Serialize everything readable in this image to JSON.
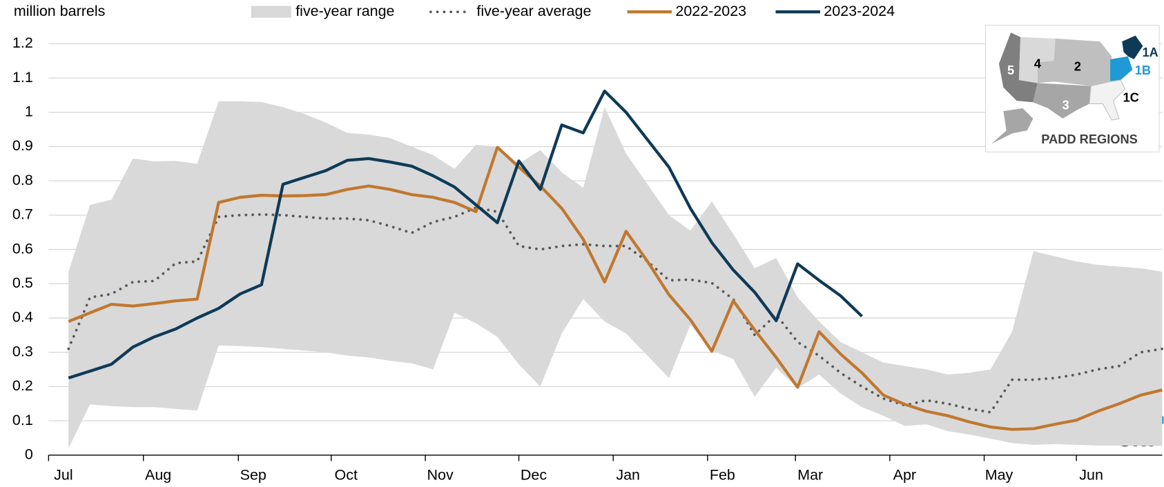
{
  "chart_data": {
    "type": "line",
    "y_label": "million barrels",
    "categories": [
      null,
      null,
      null,
      null,
      null,
      null,
      null,
      null,
      null,
      null,
      null,
      null,
      null,
      null,
      null,
      null,
      null,
      null,
      null,
      null,
      null,
      null,
      null,
      null,
      null,
      null,
      null,
      null,
      null,
      null,
      null,
      null,
      null,
      null,
      null,
      null,
      null,
      null,
      null,
      null,
      null,
      null,
      null,
      null,
      null,
      null,
      null,
      null,
      null,
      null,
      null,
      null
    ],
    "xlim": [
      -0.93,
      51
    ],
    "xticks": [
      {
        "value": -0.93,
        "label": "Jul"
      },
      {
        "value": 3.49,
        "label": "Aug"
      },
      {
        "value": 7.92,
        "label": "Sep"
      },
      {
        "value": 12.25,
        "label": "Oct"
      },
      {
        "value": 16.64,
        "label": "Nov"
      },
      {
        "value": 21.0,
        "label": "Dec"
      },
      {
        "value": 25.4,
        "label": "Jan"
      },
      {
        "value": 29.8,
        "label": "Feb"
      },
      {
        "value": 33.9,
        "label": "Mar"
      },
      {
        "value": 38.3,
        "label": "Apr"
      },
      {
        "value": 42.7,
        "label": "May"
      },
      {
        "value": 47.0,
        "label": "Jun"
      }
    ],
    "ylim": [
      0,
      1.2
    ],
    "yticks": [
      0,
      0.1,
      0.2,
      0.3,
      0.4,
      0.5,
      0.6,
      0.7,
      0.8,
      0.9,
      1,
      1.1,
      1.2
    ],
    "grid": true,
    "series": [
      {
        "name": "five-year range",
        "kind": "band",
        "color": "#d9d9d9",
        "high": [
          0.535,
          0.73,
          0.745,
          0.865,
          0.857,
          0.858,
          0.85,
          1.032,
          1.032,
          1.03,
          1.015,
          0.995,
          0.97,
          0.94,
          0.935,
          0.925,
          0.9,
          0.875,
          0.835,
          0.905,
          0.9,
          0.85,
          0.89,
          0.825,
          0.78,
          1.015,
          0.88,
          0.79,
          0.7,
          0.655,
          0.74,
          0.645,
          0.545,
          0.575,
          0.46,
          0.39,
          0.33,
          0.3,
          0.27,
          0.26,
          0.25,
          0.235,
          0.24,
          0.25,
          0.36,
          0.595,
          0.58,
          0.565,
          0.555,
          0.55,
          0.545,
          0.535
        ],
        "low": [
          0.02,
          0.148,
          0.143,
          0.14,
          0.14,
          0.135,
          0.13,
          0.32,
          0.318,
          0.315,
          0.31,
          0.305,
          0.3,
          0.29,
          0.285,
          0.275,
          0.268,
          0.25,
          0.415,
          0.385,
          0.345,
          0.265,
          0.2,
          0.355,
          0.455,
          0.39,
          0.355,
          0.29,
          0.225,
          0.38,
          0.305,
          0.28,
          0.17,
          0.255,
          0.195,
          0.235,
          0.18,
          0.14,
          0.115,
          0.085,
          0.09,
          0.07,
          0.06,
          0.048,
          0.035,
          0.03,
          0.032,
          0.03,
          0.028,
          0.028,
          0.027,
          0.027
        ]
      },
      {
        "name": "five-year average",
        "kind": "dotted",
        "color": "#595959",
        "values": [
          0.31,
          0.46,
          0.47,
          0.505,
          0.508,
          0.56,
          0.565,
          0.695,
          0.7,
          0.702,
          0.7,
          0.695,
          0.69,
          0.69,
          0.685,
          0.668,
          0.648,
          0.68,
          0.695,
          0.722,
          0.71,
          0.61,
          0.6,
          0.61,
          0.615,
          0.61,
          0.61,
          0.565,
          0.51,
          0.512,
          0.502,
          0.455,
          0.35,
          0.41,
          0.33,
          0.29,
          0.24,
          0.2,
          0.165,
          0.145,
          0.16,
          0.15,
          0.135,
          0.125,
          0.22,
          0.22,
          0.225,
          0.235,
          0.25,
          0.26,
          0.3,
          0.31
        ]
      },
      {
        "name": "2022-2023",
        "kind": "line",
        "color": "#c07830",
        "values": [
          0.39,
          0.415,
          0.44,
          0.435,
          0.442,
          0.45,
          0.455,
          0.737,
          0.752,
          0.758,
          0.756,
          0.757,
          0.76,
          0.775,
          0.785,
          0.775,
          0.76,
          0.752,
          0.737,
          0.71,
          0.898,
          0.84,
          0.785,
          0.72,
          0.63,
          0.505,
          0.653,
          0.565,
          0.468,
          0.395,
          0.303,
          0.45,
          0.365,
          0.285,
          0.198,
          0.36,
          0.295,
          0.24,
          0.175,
          0.148,
          0.128,
          0.115,
          0.097,
          0.082,
          0.075,
          0.077,
          0.09,
          0.102,
          0.128,
          0.15,
          0.175,
          0.19
        ]
      },
      {
        "name": "2023-2024",
        "kind": "line",
        "color": "#0e3a57",
        "values": [
          0.225,
          0.245,
          0.265,
          0.315,
          0.345,
          0.368,
          0.4,
          0.428,
          0.47,
          0.497,
          0.79,
          0.81,
          0.83,
          0.86,
          0.865,
          0.855,
          0.843,
          0.815,
          0.782,
          0.73,
          0.678,
          0.858,
          0.775,
          0.963,
          0.94,
          1.062,
          1.0,
          0.92,
          0.84,
          0.72,
          0.62,
          0.54,
          0.475,
          0.392,
          0.558,
          0.51,
          0.465,
          0.405,
          null,
          null,
          null,
          null,
          null,
          null,
          null,
          null,
          null,
          null,
          null,
          null,
          null,
          null
        ]
      }
    ],
    "inset": {
      "labels": [
        "1A",
        "1B",
        "2",
        "3",
        "4",
        "5",
        "1C"
      ],
      "title": "PADD REGIONS"
    },
    "logo": "eia"
  }
}
